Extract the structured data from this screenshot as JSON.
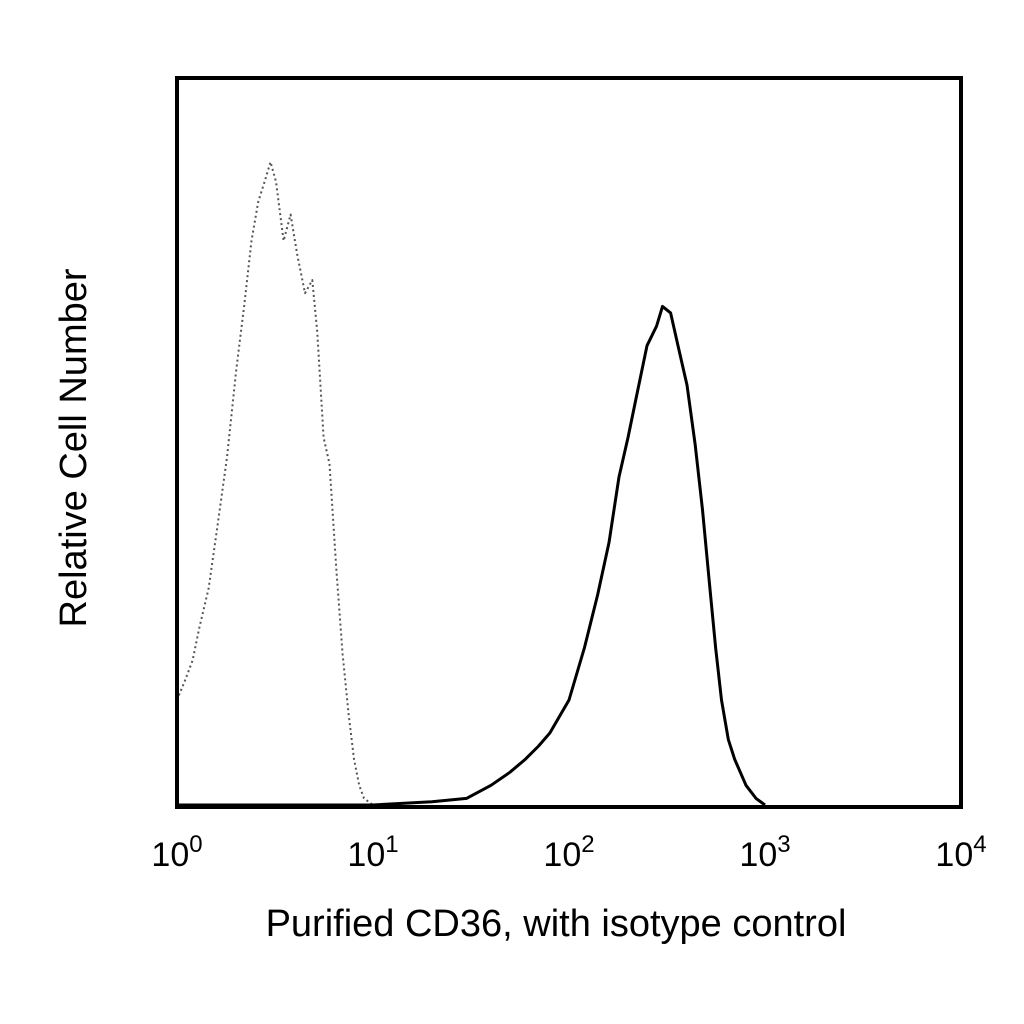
{
  "chart_data": {
    "type": "line",
    "title": "",
    "xlabel": "Purified CD36, with isotype control",
    "ylabel": "Relative Cell Number",
    "x_scale": "log",
    "xlim": [
      1,
      10000
    ],
    "ylim": [
      0,
      1
    ],
    "grid": false,
    "legend": "none",
    "x_ticks": [
      {
        "base": "10",
        "exp": "0",
        "value": 1
      },
      {
        "base": "10",
        "exp": "1",
        "value": 10
      },
      {
        "base": "10",
        "exp": "2",
        "value": 100
      },
      {
        "base": "10",
        "exp": "3",
        "value": 1000
      },
      {
        "base": "10",
        "exp": "4",
        "value": 10000
      }
    ],
    "series": [
      {
        "style": "dotted",
        "color": "#555555",
        "points": [
          [
            1.0,
            0.16
          ],
          [
            1.1,
            0.19
          ],
          [
            1.2,
            0.22
          ],
          [
            1.3,
            0.27
          ],
          [
            1.45,
            0.33
          ],
          [
            1.6,
            0.42
          ],
          [
            1.8,
            0.53
          ],
          [
            2.0,
            0.66
          ],
          [
            2.2,
            0.76
          ],
          [
            2.4,
            0.86
          ],
          [
            2.6,
            0.92
          ],
          [
            2.8,
            0.95
          ],
          [
            3.0,
            0.98
          ],
          [
            3.2,
            0.95
          ],
          [
            3.5,
            0.86
          ],
          [
            3.8,
            0.9
          ],
          [
            4.1,
            0.84
          ],
          [
            4.5,
            0.78
          ],
          [
            4.9,
            0.8
          ],
          [
            5.2,
            0.72
          ],
          [
            5.6,
            0.56
          ],
          [
            6.0,
            0.52
          ],
          [
            6.5,
            0.36
          ],
          [
            7.0,
            0.23
          ],
          [
            7.5,
            0.14
          ],
          [
            8.0,
            0.07
          ],
          [
            8.5,
            0.03
          ],
          [
            9.0,
            0.01
          ],
          [
            10.0,
            0.0
          ],
          [
            12.0,
            0.0
          ]
        ]
      },
      {
        "style": "solid",
        "color": "#000000",
        "points": [
          [
            1.0,
            0.0
          ],
          [
            5.0,
            0.0
          ],
          [
            10.0,
            0.0
          ],
          [
            20.0,
            0.005
          ],
          [
            30.0,
            0.01
          ],
          [
            40.0,
            0.03
          ],
          [
            50.0,
            0.05
          ],
          [
            60.0,
            0.07
          ],
          [
            70.0,
            0.09
          ],
          [
            80.0,
            0.11
          ],
          [
            100.0,
            0.16
          ],
          [
            120.0,
            0.24
          ],
          [
            140.0,
            0.32
          ],
          [
            160.0,
            0.4
          ],
          [
            180.0,
            0.5
          ],
          [
            200.0,
            0.56
          ],
          [
            220.0,
            0.62
          ],
          [
            250.0,
            0.7
          ],
          [
            280.0,
            0.73
          ],
          [
            300.0,
            0.76
          ],
          [
            330.0,
            0.75
          ],
          [
            360.0,
            0.7
          ],
          [
            400.0,
            0.64
          ],
          [
            440.0,
            0.55
          ],
          [
            480.0,
            0.45
          ],
          [
            520.0,
            0.34
          ],
          [
            560.0,
            0.24
          ],
          [
            600.0,
            0.16
          ],
          [
            650.0,
            0.1
          ],
          [
            700.0,
            0.07
          ],
          [
            800.0,
            0.03
          ],
          [
            900.0,
            0.01
          ],
          [
            1000.0,
            0.0
          ]
        ]
      }
    ]
  }
}
